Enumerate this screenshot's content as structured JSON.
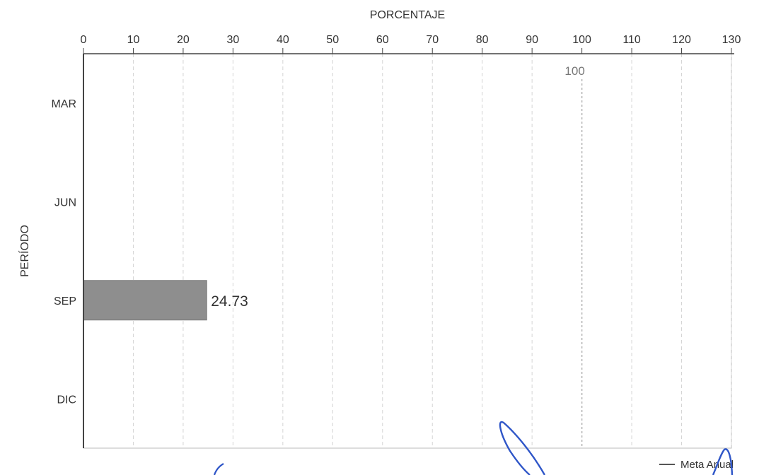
{
  "chart_data": {
    "type": "bar",
    "orientation": "horizontal",
    "categories": [
      "MAR",
      "JUN",
      "SEP",
      "DIC"
    ],
    "series": [
      {
        "values": [
          null,
          null,
          24.73,
          null
        ]
      }
    ],
    "data_labels": [
      "",
      "",
      "24.73",
      ""
    ],
    "xlabel": "PORCENTAJE",
    "ylabel": "PERÍODO",
    "xlim": [
      0,
      130
    ],
    "x_ticks": [
      0,
      10,
      20,
      30,
      40,
      50,
      60,
      70,
      80,
      90,
      100,
      110,
      120,
      130
    ],
    "x_axis_position": "top",
    "grid": "vertical-dashed",
    "goal_line": {
      "value": 100,
      "label": "100"
    },
    "legend": {
      "placement": "bottom-right",
      "entries": [
        "Meta Anual"
      ]
    },
    "colors": {
      "bar": "#8e8e8e",
      "goal_line": "#b5b5b5",
      "grid": "#d4d4d4",
      "axis": "#444444",
      "annotation_ink": "#2f56c8"
    }
  }
}
